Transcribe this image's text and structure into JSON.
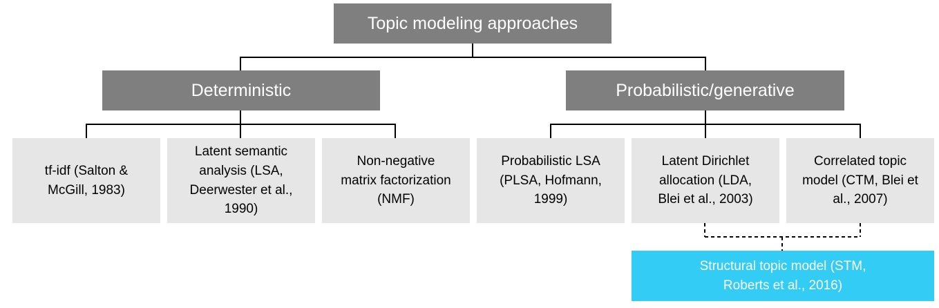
{
  "root": {
    "label": "Topic modeling approaches"
  },
  "categories": [
    {
      "label": "Deterministic"
    },
    {
      "label": "Probabilistic/generative"
    }
  ],
  "methods": [
    {
      "label": "tf-idf (Salton &\nMcGill, 1983)"
    },
    {
      "label": "Latent semantic\nanalysis (LSA,\nDeerwester et al.,\n1990)"
    },
    {
      "label": "Non-negative\nmatrix factorization\n(NMF)"
    },
    {
      "label": "Probabilistic LSA\n(PLSA, Hofmann,\n1999)"
    },
    {
      "label": "Latent Dirichlet\nallocation (LDA,\nBlei et al., 2003)"
    },
    {
      "label": "Correlated topic\nmodel (CTM, Blei et\nal., 2007)"
    }
  ],
  "derived": {
    "label": "Structural topic model (STM,\nRoberts et al., 2016)"
  },
  "colors": {
    "dark_box": "#7f7f7f",
    "light_box": "#e6e6e6",
    "accent_box": "#33ccf5",
    "connector": "#000000"
  }
}
